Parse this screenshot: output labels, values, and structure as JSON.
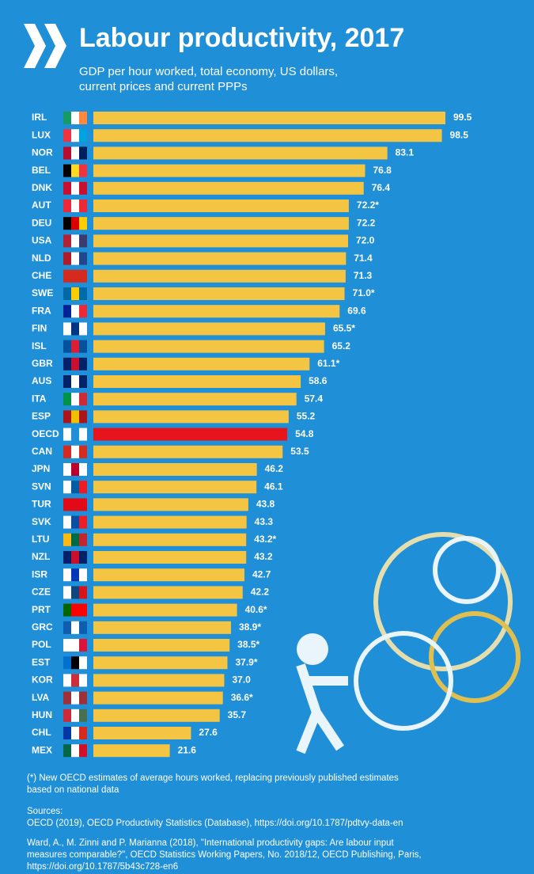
{
  "chart_data": {
    "type": "bar",
    "orientation": "horizontal",
    "title": "Labour productivity, 2017",
    "subtitle": [
      "GDP per hour worked, total economy, US dollars,",
      "current prices and current PPPs"
    ],
    "categories": [
      "IRL",
      "LUX",
      "NOR",
      "BEL",
      "DNK",
      "AUT",
      "DEU",
      "USA",
      "NLD",
      "CHE",
      "SWE",
      "FRA",
      "FIN",
      "ISL",
      "GBR",
      "AUS",
      "ITA",
      "ESP",
      "OECD",
      "CAN",
      "JPN",
      "SVN",
      "TUR",
      "SVK",
      "LTU",
      "NZL",
      "ISR",
      "CZE",
      "PRT",
      "GRC",
      "POL",
      "EST",
      "KOR",
      "LVA",
      "HUN",
      "CHL",
      "MEX"
    ],
    "values": [
      99.5,
      98.5,
      83.1,
      76.8,
      76.4,
      72.2,
      72.2,
      72.0,
      71.4,
      71.3,
      71.0,
      69.6,
      65.5,
      65.2,
      61.1,
      58.6,
      57.4,
      55.2,
      54.8,
      53.5,
      46.2,
      46.1,
      43.8,
      43.3,
      43.2,
      43.2,
      42.7,
      42.2,
      40.6,
      38.9,
      38.5,
      37.9,
      37.0,
      36.6,
      35.7,
      27.6,
      21.6
    ],
    "value_labels": [
      "99.5",
      "98.5",
      "83.1",
      "76.8",
      "76.4",
      "72.2*",
      "72.2",
      "72.0",
      "71.4",
      "71.3",
      "71.0*",
      "69.6",
      "65.5*",
      "65.2",
      "61.1*",
      "58.6",
      "57.4",
      "55.2",
      "54.8",
      "53.5",
      "46.2",
      "46.1",
      "43.8",
      "43.3",
      "43.2*",
      "43.2",
      "42.7",
      "42.2",
      "40.6*",
      "38.9*",
      "38.5*",
      "37.9*",
      "37.0",
      "36.6*",
      "35.7",
      "27.6",
      "21.6"
    ],
    "colors": [
      "#f4c542",
      "#f4c542",
      "#f4c542",
      "#f4c542",
      "#f4c542",
      "#f4c542",
      "#f4c542",
      "#f4c542",
      "#f4c542",
      "#f4c542",
      "#f4c542",
      "#f4c542",
      "#f4c542",
      "#f4c542",
      "#f4c542",
      "#f4c542",
      "#f4c542",
      "#f4c542",
      "#e8141b",
      "#f4c542",
      "#f4c542",
      "#f4c542",
      "#f4c542",
      "#f4c542",
      "#f4c542",
      "#f4c542",
      "#f4c542",
      "#f4c542",
      "#f4c542",
      "#f4c542",
      "#f4c542",
      "#f4c542",
      "#f4c542",
      "#f4c542",
      "#f4c542",
      "#f4c542",
      "#f4c542"
    ],
    "footnote": [
      "(*) New OECD estimates of average hours worked, replacing previously published estimates",
      "based on national data"
    ],
    "sources": [
      "Sources:",
      "OECD (2019), OECD Productivity Statistics (Database), https://doi.org/10.1787/pdtvy-data-en"
    ],
    "reference": [
      "Ward, A., M. Zinni and P. Marianna (2018), \"International productivity gaps: Are labour input",
      "measures comparable?\", OECD Statistics Working Papers, No. 2018/12, OECD Publishing, Paris,",
      "https://doi.org/10.1787/5b43c728-en6"
    ]
  }
}
